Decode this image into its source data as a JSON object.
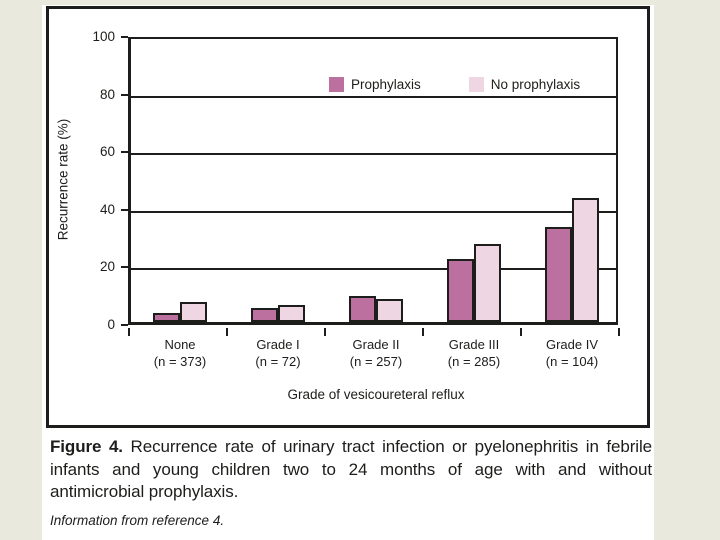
{
  "colors": {
    "page_bg": "#e9e9de",
    "panel_bg": "#ffffff",
    "ink": "#1d1d1b",
    "prophylaxis_bar": "#bb70a0",
    "no_prophylaxis_bar": "#eed7e3"
  },
  "chart_data": {
    "type": "bar",
    "title": "",
    "xlabel": "Grade of vesicoureteral reflux",
    "ylabel": "Recurrence rate (%)",
    "ylim": [
      0,
      100
    ],
    "yticks": [
      0,
      20,
      40,
      60,
      80,
      100
    ],
    "grid": true,
    "legend_position": "top-center-inside",
    "categories": [
      "None",
      "Grade I",
      "Grade II",
      "Grade III",
      "Grade IV"
    ],
    "category_n_labels": [
      "(n = 373)",
      "(n = 72)",
      "(n = 257)",
      "(n = 285)",
      "(n = 104)"
    ],
    "series": [
      {
        "name": "Prophylaxis",
        "color": "#bb70a0",
        "values": [
          3,
          5,
          9,
          22,
          33
        ]
      },
      {
        "name": "No prophylaxis",
        "color": "#eed7e3",
        "values": [
          7,
          6,
          8,
          27,
          43
        ]
      }
    ]
  },
  "caption": {
    "figure_label": "Figure 4.",
    "text": " Recurrence rate of urinary tract infection or pyelonephritis in febrile infants and young children two to 24 months of age with and without antimicrobial prophylaxis.",
    "note": "Information from reference 4."
  }
}
